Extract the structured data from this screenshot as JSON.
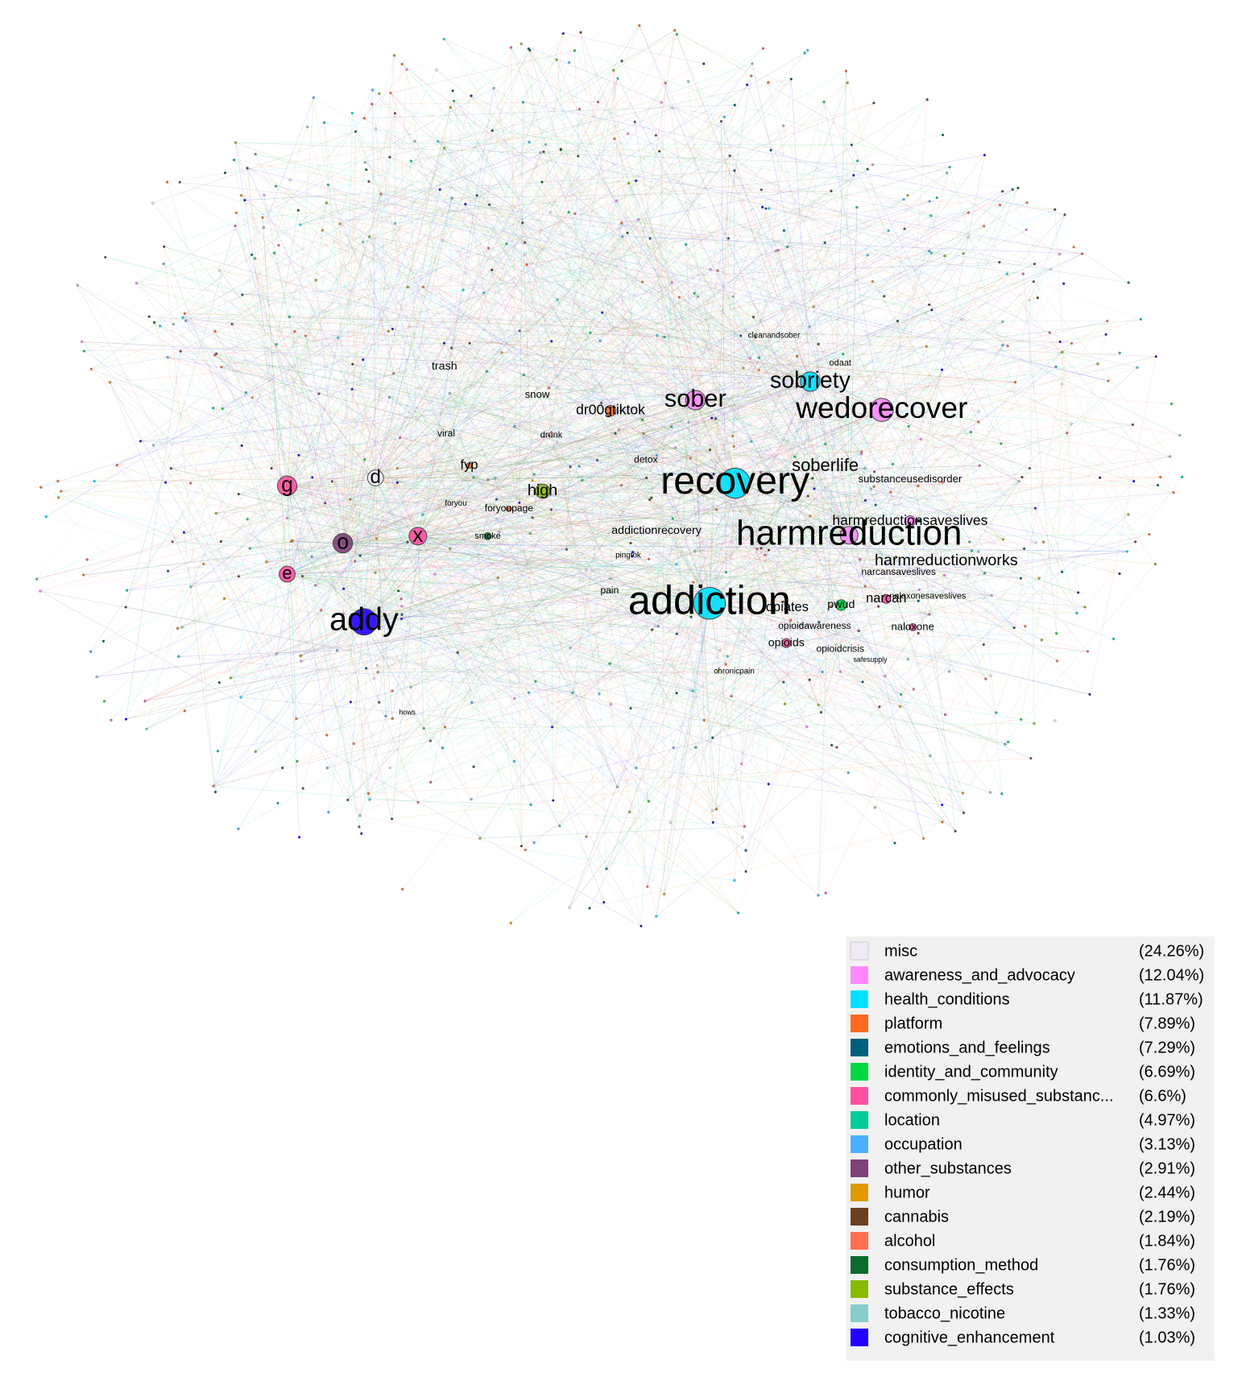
{
  "graph": {
    "nodes": [
      {
        "label": "trash"
      },
      {
        "label": "snow"
      },
      {
        "label": "dr00gtiktok",
        "color": "#ff6a1e"
      },
      {
        "label": "sober",
        "color": "#ff88ff"
      },
      {
        "label": "sobriety",
        "color": "#00e0ff"
      },
      {
        "label": "wedorecover",
        "color": "#ff88ff"
      },
      {
        "label": "odaat"
      },
      {
        "label": "cleanandsober"
      },
      {
        "label": "soberlife"
      },
      {
        "label": "substanceusedisorder"
      },
      {
        "label": "recovery",
        "color": "#00e0ff"
      },
      {
        "label": "g",
        "color": "#ff4fa0"
      },
      {
        "label": "d",
        "color": "#f4f0fb"
      },
      {
        "label": "high",
        "color": "#88bb00"
      },
      {
        "label": "fyp",
        "color": "#ff6a1e"
      },
      {
        "label": "viral"
      },
      {
        "label": "drunk"
      },
      {
        "label": "detox"
      },
      {
        "label": "foryoupage",
        "color": "#ff6a1e"
      },
      {
        "label": "foryou"
      },
      {
        "label": "o",
        "color": "#80407a"
      },
      {
        "label": "x",
        "color": "#ff4fa0"
      },
      {
        "label": "smoke",
        "color": "#0a6b2a"
      },
      {
        "label": "harmreductionsaveslives",
        "color": "#ff88ff"
      },
      {
        "label": "harmreduction",
        "color": "#ff88ff"
      },
      {
        "label": "addictionrecovery"
      },
      {
        "label": "harmreductionworks"
      },
      {
        "label": "narcansaveslives"
      },
      {
        "label": "e",
        "color": "#ff4fa0"
      },
      {
        "label": "pingtok"
      },
      {
        "label": "pain"
      },
      {
        "label": "addiction",
        "color": "#00e0ff"
      },
      {
        "label": "pwud",
        "color": "#00d840"
      },
      {
        "label": "narcan",
        "color": "#ff4fa0"
      },
      {
        "label": "naloxonesaveslives"
      },
      {
        "label": "opiates"
      },
      {
        "label": "opioidawareness"
      },
      {
        "label": "naloxone",
        "color": "#ff4fa0"
      },
      {
        "label": "opioids",
        "color": "#ff4fa0"
      },
      {
        "label": "opioidcrisis"
      },
      {
        "label": "addy",
        "color": "#2200ff"
      },
      {
        "label": "chronicpain"
      },
      {
        "label": "safesupply"
      },
      {
        "label": "hows"
      }
    ]
  },
  "legend": {
    "items": [
      {
        "name": "misc",
        "color": "#efe9f8",
        "share": "(24.26%)"
      },
      {
        "name": "awareness_and_advocacy",
        "color": "#ff88ff",
        "share": "(12.04%)"
      },
      {
        "name": "health_conditions",
        "color": "#00e0ff",
        "share": "(11.87%)"
      },
      {
        "name": "platform",
        "color": "#ff6a1e",
        "share": "(7.89%)"
      },
      {
        "name": "emotions_and_feelings",
        "color": "#00607a",
        "share": "(7.29%)"
      },
      {
        "name": "identity_and_community",
        "color": "#00d840",
        "share": "(6.69%)"
      },
      {
        "name": "commonly_misused_substanc...",
        "color": "#ff4fa0",
        "share": "(6.6%)"
      },
      {
        "name": "location",
        "color": "#00cc99",
        "share": "(4.97%)"
      },
      {
        "name": "occupation",
        "color": "#4db0ff",
        "share": "(3.13%)"
      },
      {
        "name": "other_substances",
        "color": "#80407a",
        "share": "(2.91%)"
      },
      {
        "name": "humor",
        "color": "#e09a00",
        "share": "(2.44%)"
      },
      {
        "name": "cannabis",
        "color": "#6b4020",
        "share": "(2.19%)"
      },
      {
        "name": "alcohol",
        "color": "#ff7050",
        "share": "(1.84%)"
      },
      {
        "name": "consumption_method",
        "color": "#0a6b2a",
        "share": "(1.76%)"
      },
      {
        "name": "substance_effects",
        "color": "#88bb00",
        "share": "(1.76%)"
      },
      {
        "name": "tobacco_nicotine",
        "color": "#88cccc",
        "share": "(1.33%)"
      },
      {
        "name": "cognitive_enhancement",
        "color": "#2200ff",
        "share": "(1.03%)"
      }
    ]
  }
}
